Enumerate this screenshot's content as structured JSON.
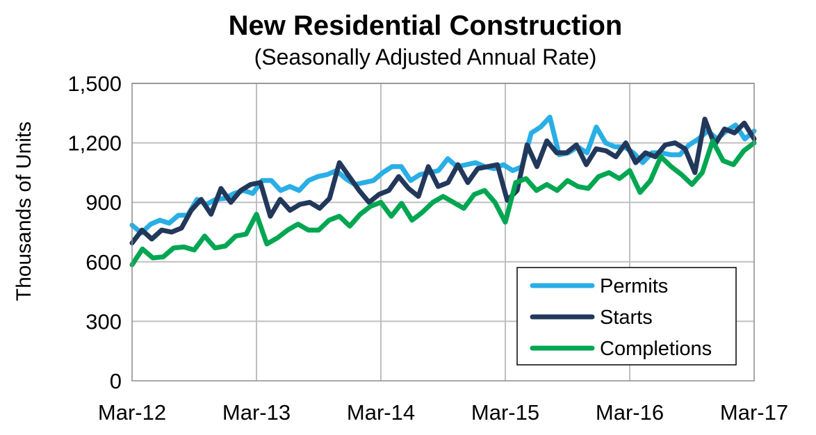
{
  "chart_data": {
    "type": "line",
    "title": "New Residential Construction",
    "subtitle": "(Seasonally Adjusted Annual Rate)",
    "xlabel": "",
    "ylabel": "Thousands of Units",
    "ylim": [
      0,
      1500
    ],
    "yticks": [
      "0",
      "300",
      "600",
      "900",
      "1,200",
      "1,500"
    ],
    "ytick_values": [
      0,
      300,
      600,
      900,
      1200,
      1500
    ],
    "xticks": [
      "Mar-12",
      "Mar-13",
      "Mar-14",
      "Mar-15",
      "Mar-16",
      "Mar-17"
    ],
    "xlim_months": [
      "Mar-12",
      "Mar-17"
    ],
    "grid": true,
    "legend_position": "bottom-right",
    "series": [
      {
        "name": "Permits",
        "color": "#29aee6",
        "values": [
          785,
          745,
          790,
          810,
          795,
          835,
          835,
          915,
          890,
          915,
          920,
          945,
          960,
          945,
          1010,
          1010,
          960,
          980,
          960,
          1010,
          1030,
          1040,
          1060,
          1020,
          990,
          1000,
          1010,
          1050,
          1080,
          1080,
          1010,
          1040,
          1050,
          1060,
          1120,
          1080,
          1090,
          1100,
          1080,
          1070,
          1090,
          1060,
          1080,
          1250,
          1280,
          1330,
          1140,
          1150,
          1180,
          1150,
          1280,
          1200,
          1180,
          1180,
          1150,
          1100,
          1150,
          1150,
          1140,
          1140,
          1190,
          1220,
          1260,
          1220,
          1260,
          1290,
          1220,
          1260
        ]
      },
      {
        "name": "Starts",
        "color": "#22385b",
        "values": [
          695,
          760,
          715,
          760,
          750,
          770,
          860,
          915,
          840,
          970,
          900,
          960,
          990,
          1000,
          830,
          915,
          860,
          890,
          900,
          870,
          920,
          1100,
          1030,
          960,
          900,
          940,
          960,
          1030,
          970,
          930,
          1080,
          980,
          1000,
          1090,
          1000,
          1070,
          1080,
          1090,
          910,
          960,
          1190,
          1080,
          1210,
          1150,
          1150,
          1190,
          1090,
          1170,
          1160,
          1130,
          1200,
          1100,
          1150,
          1130,
          1190,
          1200,
          1170,
          1050,
          1320,
          1190,
          1270,
          1250,
          1300,
          1220
        ]
      },
      {
        "name": "Completions",
        "color": "#00a651",
        "values": [
          585,
          665,
          620,
          625,
          670,
          675,
          660,
          730,
          670,
          680,
          730,
          740,
          840,
          690,
          720,
          760,
          790,
          760,
          760,
          810,
          830,
          780,
          840,
          880,
          900,
          830,
          895,
          810,
          850,
          900,
          930,
          900,
          870,
          940,
          960,
          900,
          800,
          1000,
          1020,
          960,
          990,
          960,
          1010,
          980,
          970,
          1030,
          1050,
          1020,
          1060,
          950,
          1010,
          1130,
          1080,
          1040,
          990,
          1050,
          1210,
          1110,
          1090,
          1160,
          1200
        ]
      }
    ]
  }
}
